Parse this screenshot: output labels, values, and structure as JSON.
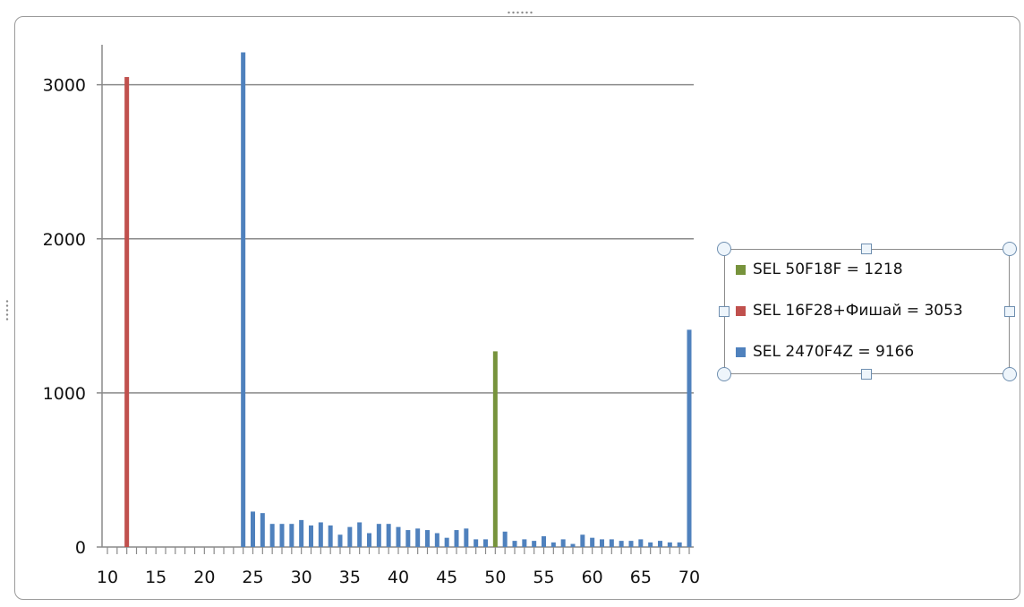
{
  "chart_data": {
    "type": "bar",
    "title": "",
    "xlabel": "",
    "ylabel": "",
    "xlim": [
      10,
      70
    ],
    "ylim": [
      0,
      3300
    ],
    "yticks": [
      0,
      1000,
      2000,
      3000
    ],
    "xticks": [
      10,
      15,
      20,
      25,
      30,
      35,
      40,
      45,
      50,
      55,
      60,
      65,
      70
    ],
    "grid": "horizontal",
    "legend_position": "right",
    "series": [
      {
        "name": "SEL 50F18F = 1218",
        "color": "#77933C",
        "points": [
          [
            50,
            1270
          ]
        ]
      },
      {
        "name": "SEL 16F28+Фишай = 3053",
        "color": "#C0504D",
        "points": [
          [
            12,
            3050
          ]
        ]
      },
      {
        "name": "SEL 2470F4Z = 9166",
        "color": "#4F81BD",
        "points": [
          [
            24,
            3210
          ],
          [
            25,
            230
          ],
          [
            26,
            220
          ],
          [
            27,
            150
          ],
          [
            28,
            150
          ],
          [
            29,
            150
          ],
          [
            30,
            175
          ],
          [
            31,
            140
          ],
          [
            32,
            160
          ],
          [
            33,
            140
          ],
          [
            34,
            80
          ],
          [
            35,
            130
          ],
          [
            36,
            160
          ],
          [
            37,
            90
          ],
          [
            38,
            150
          ],
          [
            39,
            150
          ],
          [
            40,
            130
          ],
          [
            41,
            110
          ],
          [
            42,
            120
          ],
          [
            43,
            110
          ],
          [
            44,
            90
          ],
          [
            45,
            60
          ],
          [
            46,
            110
          ],
          [
            47,
            120
          ],
          [
            48,
            50
          ],
          [
            49,
            50
          ],
          [
            51,
            100
          ],
          [
            52,
            40
          ],
          [
            53,
            50
          ],
          [
            54,
            40
          ],
          [
            55,
            70
          ],
          [
            56,
            30
          ],
          [
            57,
            50
          ],
          [
            58,
            20
          ],
          [
            59,
            80
          ],
          [
            60,
            60
          ],
          [
            61,
            50
          ],
          [
            62,
            50
          ],
          [
            63,
            40
          ],
          [
            64,
            40
          ],
          [
            65,
            50
          ],
          [
            66,
            30
          ],
          [
            67,
            40
          ],
          [
            68,
            30
          ],
          [
            69,
            30
          ],
          [
            70,
            1410
          ]
        ]
      }
    ]
  }
}
